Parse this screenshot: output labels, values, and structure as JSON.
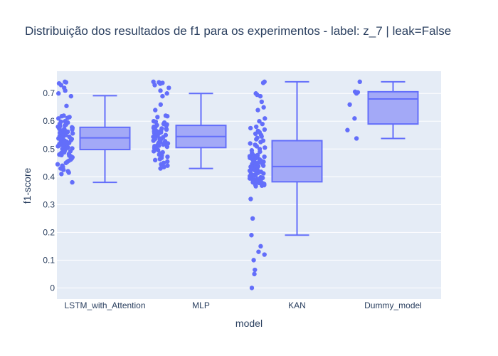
{
  "chart_data": {
    "type": "box",
    "title": "Distribuição dos resultados de f1 para os experimentos - label: z_7 | leak=False",
    "xlabel": "model",
    "ylabel": "f1-score",
    "categories": [
      "LSTM_with_Attention",
      "MLP",
      "KAN",
      "Dummy_model"
    ],
    "ylim": [
      -0.04,
      0.78
    ],
    "yticks": [
      0,
      0.1,
      0.2,
      0.3,
      0.4,
      0.5,
      0.6,
      0.7
    ],
    "ytick_labels": [
      "0",
      "0.1",
      "0.2",
      "0.3",
      "0.4",
      "0.5",
      "0.6",
      "0.7"
    ],
    "grid": true,
    "colors": {
      "marker": "#636efa",
      "box_fill": "#a3a9f7",
      "line": "#636efa",
      "plot_bg": "#e5ecf6",
      "grid": "#ffffff"
    },
    "boxes": [
      {
        "name": "LSTM_with_Attention",
        "min": 0.38,
        "q1": 0.498,
        "median": 0.54,
        "q3": 0.578,
        "max": 0.692,
        "points": [
          0.742,
          0.74,
          0.736,
          0.73,
          0.72,
          0.71,
          0.7,
          0.69,
          0.655,
          0.62,
          0.618,
          0.615,
          0.612,
          0.61,
          0.6,
          0.598,
          0.595,
          0.59,
          0.588,
          0.585,
          0.582,
          0.58,
          0.578,
          0.576,
          0.574,
          0.572,
          0.57,
          0.568,
          0.566,
          0.564,
          0.562,
          0.56,
          0.558,
          0.556,
          0.554,
          0.552,
          0.55,
          0.548,
          0.546,
          0.544,
          0.542,
          0.54,
          0.538,
          0.536,
          0.534,
          0.532,
          0.53,
          0.528,
          0.526,
          0.524,
          0.522,
          0.52,
          0.518,
          0.516,
          0.514,
          0.512,
          0.51,
          0.508,
          0.506,
          0.504,
          0.502,
          0.5,
          0.498,
          0.496,
          0.494,
          0.492,
          0.49,
          0.488,
          0.486,
          0.484,
          0.482,
          0.48,
          0.478,
          0.476,
          0.474,
          0.47,
          0.466,
          0.462,
          0.458,
          0.454,
          0.45,
          0.445,
          0.44,
          0.435,
          0.43,
          0.425,
          0.42,
          0.415,
          0.41,
          0.38
        ]
      },
      {
        "name": "MLP",
        "min": 0.43,
        "q1": 0.505,
        "median": 0.545,
        "q3": 0.585,
        "max": 0.7,
        "points": [
          0.742,
          0.74,
          0.738,
          0.735,
          0.73,
          0.72,
          0.71,
          0.7,
          0.69,
          0.66,
          0.64,
          0.62,
          0.618,
          0.615,
          0.6,
          0.598,
          0.595,
          0.592,
          0.59,
          0.588,
          0.586,
          0.584,
          0.582,
          0.58,
          0.578,
          0.576,
          0.574,
          0.572,
          0.57,
          0.568,
          0.566,
          0.564,
          0.562,
          0.56,
          0.558,
          0.556,
          0.554,
          0.552,
          0.55,
          0.548,
          0.546,
          0.544,
          0.542,
          0.54,
          0.538,
          0.536,
          0.534,
          0.532,
          0.53,
          0.528,
          0.526,
          0.524,
          0.522,
          0.52,
          0.518,
          0.516,
          0.514,
          0.512,
          0.51,
          0.508,
          0.506,
          0.504,
          0.5,
          0.496,
          0.492,
          0.488,
          0.484,
          0.48,
          0.476,
          0.472,
          0.468,
          0.464,
          0.46,
          0.455,
          0.45,
          0.445,
          0.44,
          0.435,
          0.43
        ]
      },
      {
        "name": "KAN",
        "min": 0.19,
        "q1": 0.382,
        "median": 0.437,
        "q3": 0.53,
        "max": 0.742,
        "points": [
          0.742,
          0.738,
          0.7,
          0.695,
          0.69,
          0.67,
          0.65,
          0.64,
          0.61,
          0.6,
          0.59,
          0.58,
          0.575,
          0.57,
          0.565,
          0.56,
          0.555,
          0.55,
          0.545,
          0.54,
          0.535,
          0.53,
          0.525,
          0.52,
          0.515,
          0.51,
          0.505,
          0.5,
          0.495,
          0.49,
          0.485,
          0.48,
          0.478,
          0.476,
          0.474,
          0.472,
          0.47,
          0.468,
          0.466,
          0.464,
          0.462,
          0.46,
          0.458,
          0.456,
          0.454,
          0.452,
          0.45,
          0.448,
          0.446,
          0.444,
          0.442,
          0.44,
          0.438,
          0.436,
          0.434,
          0.432,
          0.43,
          0.428,
          0.426,
          0.424,
          0.422,
          0.42,
          0.418,
          0.416,
          0.414,
          0.412,
          0.41,
          0.408,
          0.406,
          0.404,
          0.402,
          0.4,
          0.398,
          0.396,
          0.394,
          0.392,
          0.39,
          0.388,
          0.386,
          0.384,
          0.382,
          0.38,
          0.378,
          0.376,
          0.374,
          0.372,
          0.37,
          0.368,
          0.366,
          0.32,
          0.25,
          0.19,
          0.15,
          0.13,
          0.12,
          0.1,
          0.065,
          0.05,
          0.0
        ]
      },
      {
        "name": "Dummy_model",
        "min": 0.538,
        "q1": 0.59,
        "median": 0.68,
        "q3": 0.706,
        "max": 0.742,
        "points": [
          0.742,
          0.706,
          0.704,
          0.7,
          0.66,
          0.61,
          0.568,
          0.538
        ]
      }
    ]
  }
}
